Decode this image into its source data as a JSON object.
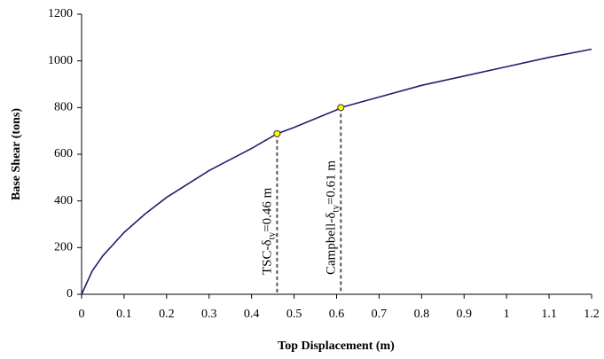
{
  "chart_data": {
    "type": "line",
    "x_label": "Top Displacement (m)",
    "y_label": "Base Shear (tons)",
    "x": [
      0,
      0.025,
      0.05,
      0.1,
      0.15,
      0.2,
      0.3,
      0.4,
      0.46,
      0.5,
      0.6,
      0.61,
      0.7,
      0.8,
      0.9,
      1.0,
      1.1,
      1.2
    ],
    "series": [
      {
        "color": "#1f1f6e",
        "values": [
          0,
          100,
          165,
          265,
          345,
          415,
          530,
          625,
          688,
          715,
          790,
          800,
          845,
          895,
          935,
          975,
          1015,
          1050
        ]
      }
    ],
    "markers": {
      "color": "#ffff00",
      "x": [
        0.46,
        0.61
      ],
      "values": [
        688,
        800
      ]
    },
    "annotations": [
      {
        "prefix": "TSC-δ",
        "sub": "ty",
        "suffix": "=0.46 m"
      },
      {
        "prefix": "Campbell-δ",
        "sub": "ty",
        "suffix": "=0.61 m"
      }
    ],
    "xlim": [
      0,
      1.2
    ],
    "xticks": [
      0,
      0.1,
      0.2,
      0.3,
      0.4,
      0.5,
      0.6,
      0.7,
      0.8,
      0.9,
      1,
      1.1,
      1.2
    ],
    "ylim": [
      0,
      1200
    ],
    "yticks": [
      0,
      200,
      400,
      600,
      800,
      1000,
      1200
    ],
    "grid": false
  }
}
